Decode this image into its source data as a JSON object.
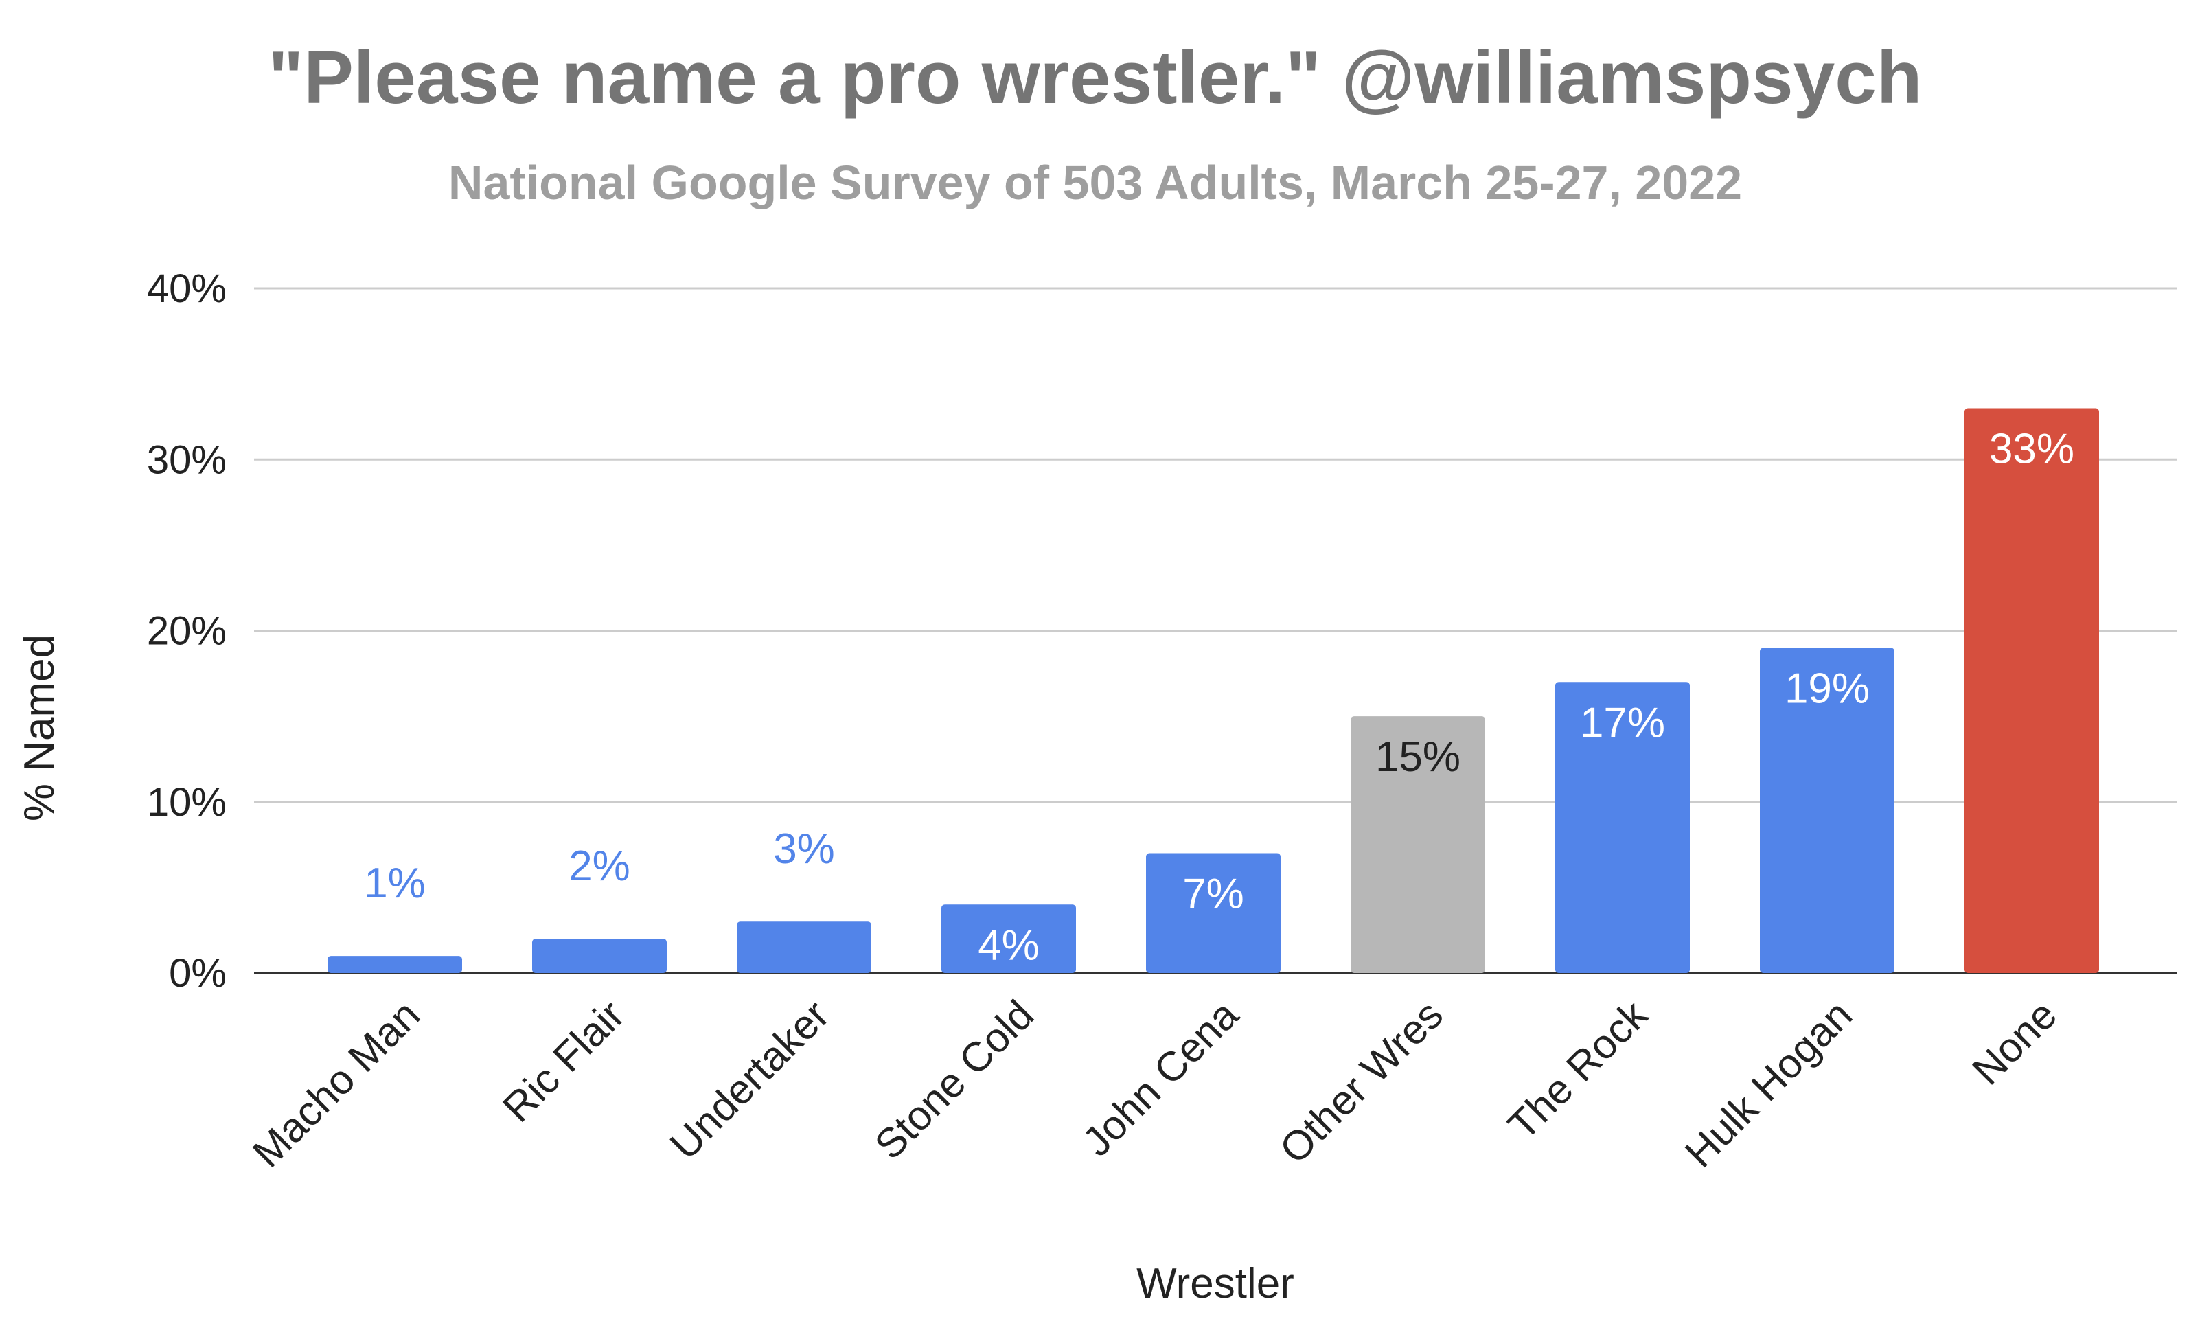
{
  "chart_data": {
    "type": "bar",
    "title": "\"Please name a pro wrestler.\" @williamspsych",
    "subtitle": "National Google Survey of 503 Adults, March 25-27, 2022",
    "xlabel": "Wrestler",
    "ylabel": "% Named",
    "ylim": [
      0,
      40
    ],
    "y_ticks": [
      "0%",
      "10%",
      "20%",
      "30%",
      "40%"
    ],
    "grid": true,
    "legend": "none",
    "categories": [
      "Macho Man",
      "Ric Flair",
      "Undertaker",
      "Stone Cold",
      "John Cena",
      "Other Wres",
      "The Rock",
      "Hulk Hogan",
      "None"
    ],
    "values": [
      1,
      2,
      3,
      4,
      7,
      15,
      17,
      19,
      33
    ],
    "data_labels": [
      "1%",
      "2%",
      "3%",
      "4%",
      "7%",
      "15%",
      "17%",
      "19%",
      "33%"
    ],
    "colors": [
      "#5284e9",
      "#5284e9",
      "#5284e9",
      "#5284e9",
      "#5284e9",
      "#b7b7b7",
      "#5284e9",
      "#5284e9",
      "#d64f3e"
    ],
    "label_colors_inside": [
      "#ffffff",
      "#ffffff",
      "#ffffff",
      "#ffffff",
      "#ffffff",
      "#222222",
      "#ffffff",
      "#ffffff",
      "#ffffff"
    ],
    "label_color_outside": "#5284e9"
  }
}
